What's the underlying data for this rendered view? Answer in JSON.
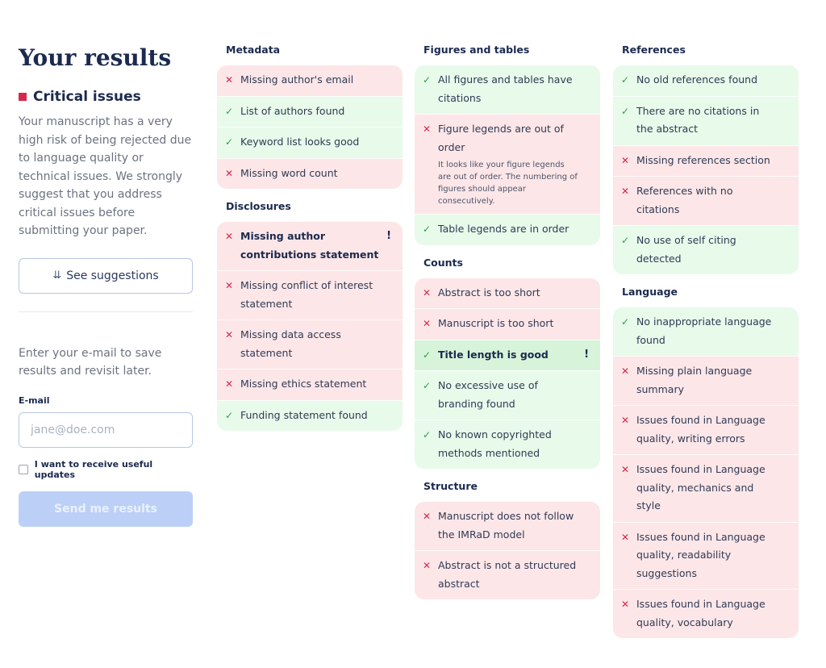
{
  "left": {
    "title": "Your results",
    "critical_label": "Critical issues",
    "description": "Your manuscript has a very high risk of being rejected due to language quality or technical issues. We strongly suggest that you address critical issues before submitting your paper.",
    "see_suggestions": "See suggestions",
    "save_text": "Enter your e-mail to save results and revisit later.",
    "email_label": "E-mail",
    "email_placeholder": "jane@doe.com",
    "updates_label": "I want to receive useful updates",
    "send_label": "Send me results"
  },
  "metadata": {
    "title": "Metadata",
    "items": [
      {
        "text": "Missing author's email"
      },
      {
        "text": "List of authors found"
      },
      {
        "text": "Keyword list looks good"
      },
      {
        "text": "Missing word count"
      }
    ]
  },
  "disclosures": {
    "title": "Disclosures",
    "items": [
      {
        "text": "Missing author contributions statement",
        "flag": "!"
      },
      {
        "text": "Missing conflict of interest statement"
      },
      {
        "text": "Missing data access statement"
      },
      {
        "text": "Missing ethics statement"
      },
      {
        "text": "Funding statement found"
      }
    ]
  },
  "figures": {
    "title": "Figures and tables",
    "items": [
      {
        "text": "All figures and tables have citations"
      },
      {
        "text": "Figure legends are out of order",
        "note": "It looks like your figure legends are out of order. The numbering of figures should appear consecutively."
      },
      {
        "text": "Table legends are in order"
      }
    ]
  },
  "counts": {
    "title": "Counts",
    "items": [
      {
        "text": "Abstract is too short"
      },
      {
        "text": "Manuscript is too short"
      },
      {
        "text": "Title length is good",
        "flag": "!"
      },
      {
        "text": "No excessive use of branding found"
      },
      {
        "text": "No known copyrighted methods mentioned"
      }
    ]
  },
  "structure": {
    "title": "Structure",
    "items": [
      {
        "text": "Manuscript does not follow the IMRaD model"
      },
      {
        "text": "Abstract is not a structured abstract"
      }
    ]
  },
  "references": {
    "title": "References",
    "items": [
      {
        "text": "No old references found"
      },
      {
        "text": "There are no citations in the abstract"
      },
      {
        "text": "Missing references section"
      },
      {
        "text": "References with no citations"
      },
      {
        "text": "No use of self citing detected"
      }
    ]
  },
  "language": {
    "title": "Language",
    "items": [
      {
        "text": "No inappropriate language found"
      },
      {
        "text": "Missing plain language summary"
      },
      {
        "text": "Issues found in Language quality, writing errors"
      },
      {
        "text": "Issues found in Language quality, mechanics and style"
      },
      {
        "text": "Issues found in Language quality, readability suggestions"
      },
      {
        "text": "Issues found in Language quality, vocabulary"
      }
    ]
  },
  "icons": {
    "fail": "cross-icon",
    "pass": "check-icon",
    "warning": "exclamation-icon",
    "expand": "double-chevron-down-icon"
  },
  "colors": {
    "critical": "#d6294b",
    "fail_bg": "#fde6e8",
    "pass_bg": "#e8faea",
    "pass_mark": "#2f9e48",
    "send_button": "#bcd0f7"
  }
}
